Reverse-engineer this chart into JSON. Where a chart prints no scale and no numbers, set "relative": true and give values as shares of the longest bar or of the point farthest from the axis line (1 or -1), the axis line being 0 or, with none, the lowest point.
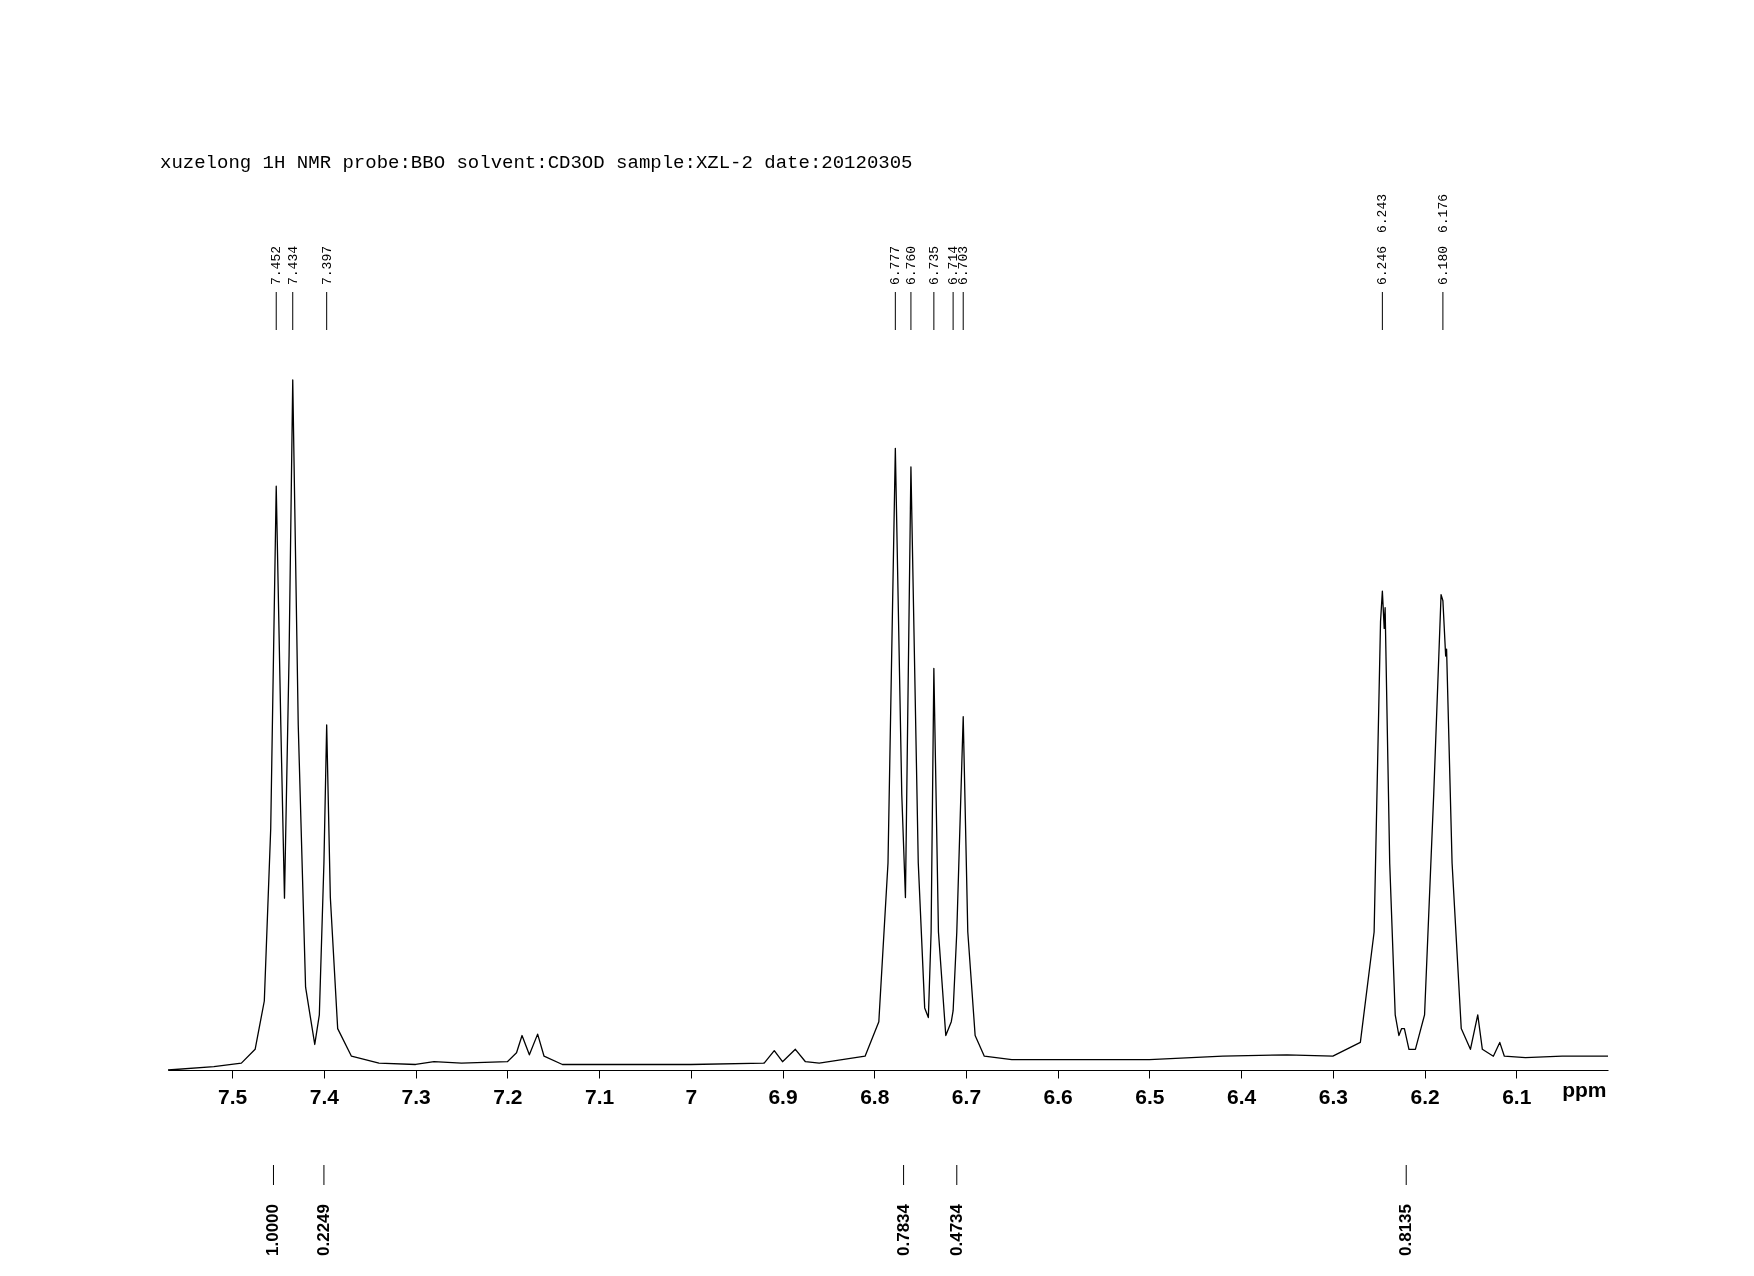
{
  "chart_data": {
    "type": "line",
    "title": "xuzelong 1H NMR probe:BBO solvent:CD3OD  sample:XZL-2 date:20120305",
    "xlabel": "ppm",
    "relative": true,
    "xlim": [
      7.57,
      6.0
    ],
    "xticks": [
      7.5,
      7.4,
      7.3,
      7.2,
      7.1,
      7.0,
      6.9,
      6.8,
      6.7,
      6.6,
      6.5,
      6.4,
      6.3,
      6.2,
      6.1
    ],
    "x": [
      7.57,
      7.52,
      7.49,
      7.475,
      7.465,
      7.458,
      7.452,
      7.447,
      7.443,
      7.438,
      7.434,
      7.428,
      7.42,
      7.41,
      7.405,
      7.4,
      7.397,
      7.393,
      7.385,
      7.37,
      7.34,
      7.3,
      7.28,
      7.25,
      7.2,
      7.19,
      7.184,
      7.176,
      7.167,
      7.16,
      7.14,
      7.0,
      6.92,
      6.909,
      6.9,
      6.886,
      6.875,
      6.86,
      6.81,
      6.795,
      6.785,
      6.777,
      6.77,
      6.766,
      6.76,
      6.752,
      6.745,
      6.741,
      6.738,
      6.735,
      6.73,
      6.722,
      6.716,
      6.714,
      6.71,
      6.703,
      6.698,
      6.69,
      6.68,
      6.65,
      6.6,
      6.5,
      6.42,
      6.35,
      6.3,
      6.27,
      6.255,
      6.248,
      6.246,
      6.244,
      6.243,
      6.238,
      6.232,
      6.228,
      6.225,
      6.222,
      6.217,
      6.21,
      6.2,
      6.19,
      6.182,
      6.18,
      6.177,
      6.176,
      6.17,
      6.16,
      6.15,
      6.142,
      6.137,
      6.125,
      6.118,
      6.113,
      6.09,
      6.05,
      6.0
    ],
    "series": [
      {
        "color": "#000000",
        "values": [
          0.0,
          0.005,
          0.01,
          0.03,
          0.1,
          0.35,
          0.846,
          0.5,
          0.249,
          0.6,
          1.0,
          0.5,
          0.12,
          0.037,
          0.08,
          0.3,
          0.5,
          0.25,
          0.06,
          0.02,
          0.01,
          0.008,
          0.012,
          0.01,
          0.012,
          0.025,
          0.05,
          0.022,
          0.052,
          0.02,
          0.008,
          0.008,
          0.01,
          0.028,
          0.012,
          0.03,
          0.012,
          0.01,
          0.02,
          0.07,
          0.3,
          0.901,
          0.4,
          0.25,
          0.874,
          0.3,
          0.09,
          0.076,
          0.2,
          0.582,
          0.2,
          0.05,
          0.07,
          0.086,
          0.2,
          0.512,
          0.2,
          0.05,
          0.02,
          0.015,
          0.015,
          0.015,
          0.02,
          0.022,
          0.02,
          0.04,
          0.2,
          0.65,
          0.694,
          0.64,
          0.67,
          0.3,
          0.08,
          0.05,
          0.06,
          0.06,
          0.03,
          0.03,
          0.08,
          0.4,
          0.689,
          0.68,
          0.6,
          0.61,
          0.3,
          0.06,
          0.03,
          0.08,
          0.03,
          0.02,
          0.04,
          0.02,
          0.018,
          0.02,
          0.02
        ]
      }
    ],
    "annotations": [
      {
        "text": "7.452",
        "x": 7.452
      },
      {
        "text": "7.434",
        "x": 7.434
      },
      {
        "text": "7.397",
        "x": 7.397
      },
      {
        "text": "6.777",
        "x": 6.777
      },
      {
        "text": "6.760",
        "x": 6.76
      },
      {
        "text": "6.735",
        "x": 6.735
      },
      {
        "text": "6.714",
        "x": 6.714
      },
      {
        "text": "6.703",
        "x": 6.703
      },
      {
        "text": "6.246",
        "x": 6.246
      },
      "6.243",
      {
        "text": "6.180",
        "x": 6.18
      },
      "6.176",
      {
        "text": "1.0000",
        "x": 7.455
      },
      {
        "text": "0.2249",
        "x": 7.4
      },
      {
        "text": "0.7834",
        "x": 6.768
      },
      {
        "text": "0.4734",
        "x": 6.71
      },
      {
        "text": "0.8135",
        "x": 6.22
      }
    ]
  }
}
